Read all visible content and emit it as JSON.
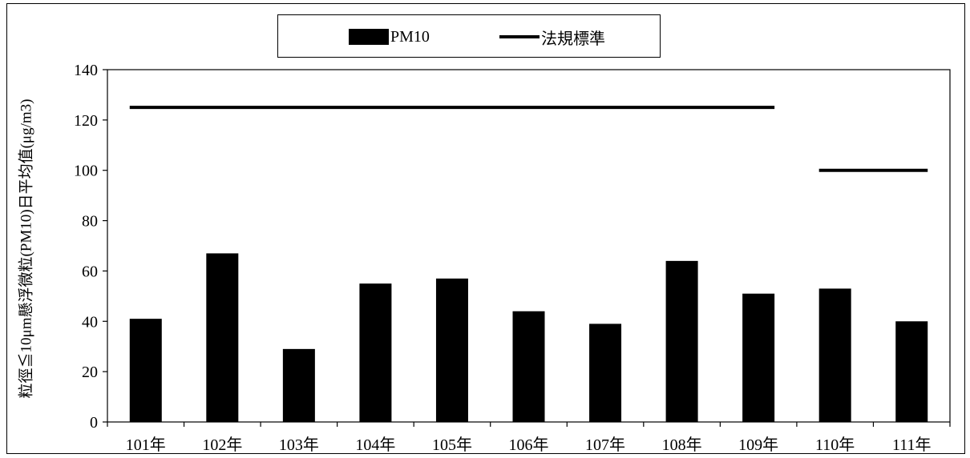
{
  "chart_data": {
    "type": "bar",
    "categories": [
      "101年",
      "102年",
      "103年",
      "104年",
      "105年",
      "106年",
      "107年",
      "108年",
      "109年",
      "110年",
      "111年"
    ],
    "series": [
      {
        "name": "PM10",
        "type": "bar",
        "values": [
          41,
          67,
          29,
          55,
          57,
          44,
          39,
          64,
          51,
          53,
          40
        ]
      },
      {
        "name": "法規標準",
        "type": "line",
        "segments": [
          {
            "from": "101年",
            "to": "109年",
            "value": 125
          },
          {
            "from": "110年",
            "to": "111年",
            "value": 100
          }
        ]
      }
    ],
    "xlabel": "",
    "ylabel": "粒徑≦10μm懸浮微粒(PM10)日平均值(μg/m3)",
    "ylim": [
      0,
      140
    ],
    "yticks": [
      0,
      20,
      40,
      60,
      80,
      100,
      120,
      140
    ],
    "grid": false,
    "legend_position": "top-center",
    "colors": {
      "bar": "#000000",
      "line": "#000000"
    }
  },
  "legend": {
    "bar_label": "PM10",
    "line_label": "法規標準"
  },
  "axis": {
    "ylabel_text": "粒徑≦10μm懸浮微粒(PM10)日平均值(μg/m3)"
  }
}
